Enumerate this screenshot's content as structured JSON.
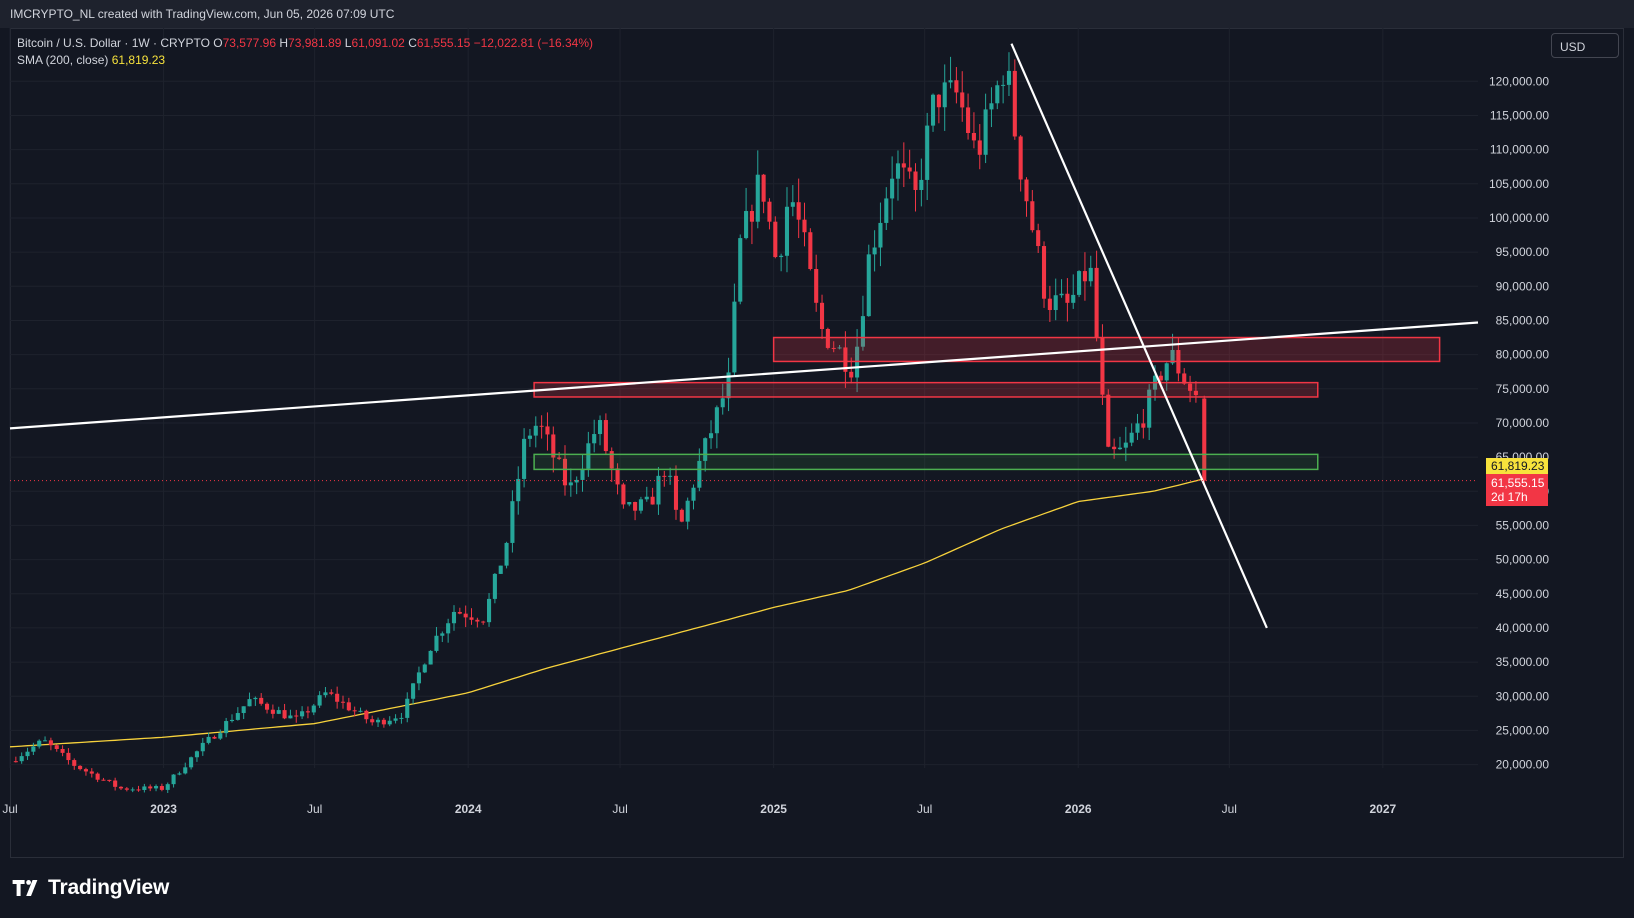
{
  "header": {
    "text": "IMCRYPTO_NL created with TradingView.com, Jun 05, 2026 07:09 UTC"
  },
  "legend": {
    "symbol": "Bitcoin / U.S. Dollar · 1W · CRYPTO",
    "o_label": "O",
    "o_value": "73,577.96",
    "h_label": "H",
    "h_value": "73,981.89",
    "l_label": "L",
    "l_value": "61,091.02",
    "c_label": "C",
    "c_value": "61,555.15",
    "change": "−12,022.81 (−16.34%)",
    "sma_label": "SMA (200, close)",
    "sma_value": "61,819.23"
  },
  "currency": "USD",
  "labels": {
    "sma_price": "61,819.23",
    "last_price": "61,555.15",
    "countdown": "2d 17h"
  },
  "logo": {
    "text": "TradingView"
  },
  "colors": {
    "up": "#26a69a",
    "down": "#f23645",
    "sma": "#f7d23c",
    "background": "#131722",
    "grid": "#1e222d",
    "zone_red": "#f23645",
    "zone_green": "#4caf50",
    "trendline": "#ffffff"
  },
  "chart_data": {
    "type": "candlestick",
    "symbol": "Bitcoin / U.S. Dollar",
    "interval": "1W",
    "y_axis": {
      "ticks": [
        20000,
        25000,
        30000,
        35000,
        40000,
        45000,
        50000,
        55000,
        60000,
        65000,
        70000,
        75000,
        80000,
        85000,
        90000,
        95000,
        100000,
        105000,
        110000,
        115000,
        120000
      ],
      "tick_labels": [
        "20,000.00",
        "25,000.00",
        "30,000.00",
        "35,000.00",
        "40,000.00",
        "45,000.00",
        "50,000.00",
        "55,000.00",
        "60,000.00",
        "65,000.00",
        "70,000.00",
        "75,000.00",
        "80,000.00",
        "85,000.00",
        "90,000.00",
        "95,000.00",
        "100,000.00",
        "105,000.00",
        "110,000.00",
        "115,000.00",
        "120,000.00"
      ],
      "range": [
        19500,
        127800
      ]
    },
    "x_axis": {
      "ticks": [
        "2022-07-01",
        "2023-01-01",
        "2023-07-01",
        "2024-01-01",
        "2024-07-01",
        "2025-01-01",
        "2025-07-01",
        "2026-01-01",
        "2026-07-01",
        "2027-01-01"
      ],
      "tick_labels": [
        "Jul",
        "2023",
        "Jul",
        "2024",
        "Jul",
        "2025",
        "Jul",
        "2026",
        "Jul",
        "2027"
      ],
      "range": [
        "2022-07-01",
        "2027-04-25"
      ]
    },
    "keypoints": [
      [
        "2022-07-01",
        20500
      ],
      [
        "2022-08-10",
        23500
      ],
      [
        "2022-09-15",
        20000
      ],
      [
        "2022-11-10",
        16500
      ],
      [
        "2022-12-31",
        16500
      ],
      [
        "2023-02-15",
        22500
      ],
      [
        "2023-04-15",
        29500
      ],
      [
        "2023-06-10",
        26500
      ],
      [
        "2023-07-15",
        30500
      ],
      [
        "2023-09-10",
        26000
      ],
      [
        "2023-10-15",
        27500
      ],
      [
        "2023-11-15",
        37000
      ],
      [
        "2023-12-15",
        42500
      ],
      [
        "2024-01-20",
        41500
      ],
      [
        "2024-02-15",
        52000
      ],
      [
        "2024-03-10",
        68000
      ],
      [
        "2024-03-25",
        70000
      ],
      [
        "2024-05-01",
        60000
      ],
      [
        "2024-06-05",
        70000
      ],
      [
        "2024-07-05",
        57000
      ],
      [
        "2024-08-05",
        58000
      ],
      [
        "2024-08-25",
        64000
      ],
      [
        "2024-09-10",
        54000
      ],
      [
        "2024-10-01",
        63000
      ],
      [
        "2024-11-08",
        76000
      ],
      [
        "2024-11-22",
        96000
      ],
      [
        "2024-12-17",
        106000
      ],
      [
        "2025-01-05",
        93000
      ],
      [
        "2025-01-20",
        104000
      ],
      [
        "2025-02-05",
        97000
      ],
      [
        "2025-02-25",
        84000
      ],
      [
        "2025-04-07",
        78000
      ],
      [
        "2025-04-25",
        94000
      ],
      [
        "2025-05-25",
        108000
      ],
      [
        "2025-06-20",
        103000
      ],
      [
        "2025-07-14",
        118000
      ],
      [
        "2025-08-10",
        118000
      ],
      [
        "2025-09-01",
        109000
      ],
      [
        "2025-10-06",
        123000
      ],
      [
        "2025-10-20",
        110000
      ],
      [
        "2025-11-24",
        88000
      ],
      [
        "2025-12-20",
        87000
      ],
      [
        "2026-01-15",
        93000
      ],
      [
        "2026-02-05",
        65000
      ],
      [
        "2026-02-25",
        66000
      ],
      [
        "2026-03-20",
        71000
      ],
      [
        "2026-04-12",
        78000
      ],
      [
        "2026-04-22",
        80000
      ],
      [
        "2026-05-10",
        76000
      ],
      [
        "2026-05-25",
        73577.96
      ]
    ],
    "last_candle": {
      "date": "2026-06-01",
      "open": 73577.96,
      "high": 73981.89,
      "low": 61091.02,
      "close": 61555.15
    },
    "sma": {
      "name": "SMA (200, close)",
      "points": [
        [
          "2022-07-01",
          22600
        ],
        [
          "2023-01-01",
          24000
        ],
        [
          "2023-07-01",
          26000
        ],
        [
          "2024-01-01",
          30500
        ],
        [
          "2024-04-01",
          34000
        ],
        [
          "2024-07-01",
          37000
        ],
        [
          "2024-10-01",
          40000
        ],
        [
          "2025-01-01",
          43000
        ],
        [
          "2025-04-01",
          45500
        ],
        [
          "2025-07-01",
          49500
        ],
        [
          "2025-10-01",
          54500
        ],
        [
          "2026-01-01",
          58500
        ],
        [
          "2026-04-01",
          60000
        ],
        [
          "2026-06-01",
          61819.23
        ]
      ]
    },
    "zones": [
      {
        "color": "red",
        "start": "2025-01-01",
        "end": "2027-03-10",
        "low": 79000,
        "high": 82500
      },
      {
        "color": "red",
        "start": "2024-03-20",
        "end": "2026-10-15",
        "low": 73800,
        "high": 75900
      },
      {
        "color": "green",
        "start": "2024-03-20",
        "end": "2026-10-15",
        "low": 63200,
        "high": 65400
      }
    ],
    "trendlines": [
      {
        "from": [
          "2022-07-01",
          69200
        ],
        "to": [
          "2027-04-25",
          84700
        ]
      },
      {
        "from": [
          "2025-10-13",
          125500
        ],
        "to": [
          "2026-08-15",
          40000
        ]
      }
    ],
    "last_price_line": 61555.15
  }
}
